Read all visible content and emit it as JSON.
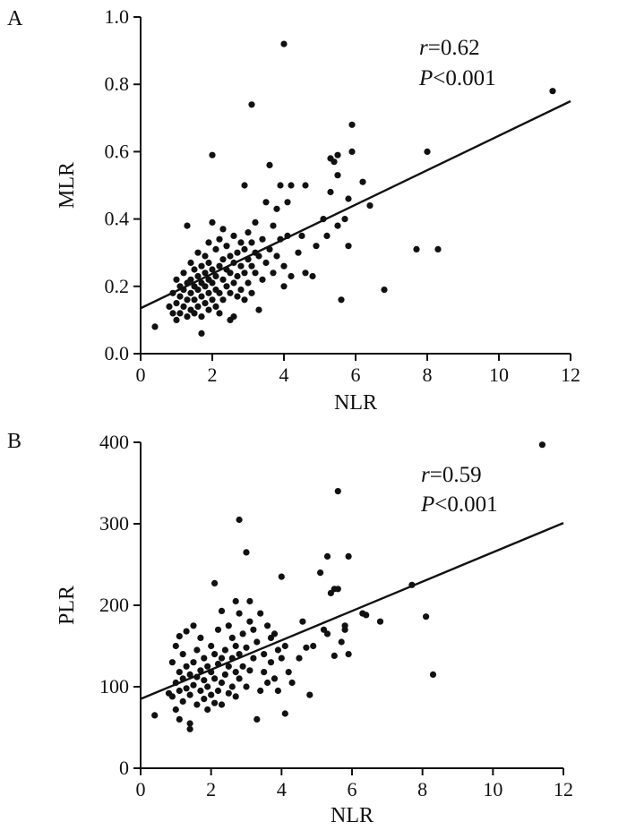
{
  "chart_data": [
    {
      "type": "scatter",
      "panel_label": "A",
      "xlabel": "NLR",
      "ylabel": "MLR",
      "xlim": [
        0,
        12
      ],
      "ylim": [
        0,
        1.0
      ],
      "x_ticks": [
        "0",
        "2",
        "4",
        "6",
        "8",
        "10",
        "12"
      ],
      "y_ticks": [
        "0.0",
        "0.2",
        "0.4",
        "0.6",
        "0.8",
        "1.0"
      ],
      "annotation": {
        "r_symbol": "r",
        "r_value": "=0.62",
        "p_symbol": "P",
        "p_value": "<0.001"
      },
      "regression": {
        "x": [
          0,
          12
        ],
        "y": [
          0.135,
          0.75
        ]
      },
      "points": [
        [
          0.4,
          0.08
        ],
        [
          0.8,
          0.14
        ],
        [
          0.9,
          0.12
        ],
        [
          0.9,
          0.18
        ],
        [
          1.0,
          0.1
        ],
        [
          1.0,
          0.15
        ],
        [
          1.0,
          0.22
        ],
        [
          1.1,
          0.12
        ],
        [
          1.1,
          0.17
        ],
        [
          1.1,
          0.2
        ],
        [
          1.2,
          0.14
        ],
        [
          1.2,
          0.19
        ],
        [
          1.2,
          0.24
        ],
        [
          1.3,
          0.11
        ],
        [
          1.3,
          0.16
        ],
        [
          1.3,
          0.21
        ],
        [
          1.3,
          0.38
        ],
        [
          1.4,
          0.13
        ],
        [
          1.4,
          0.18
        ],
        [
          1.4,
          0.22
        ],
        [
          1.4,
          0.27
        ],
        [
          1.5,
          0.12
        ],
        [
          1.5,
          0.16
        ],
        [
          1.5,
          0.2
        ],
        [
          1.5,
          0.25
        ],
        [
          1.6,
          0.14
        ],
        [
          1.6,
          0.19
        ],
        [
          1.6,
          0.23
        ],
        [
          1.6,
          0.3
        ],
        [
          1.7,
          0.11
        ],
        [
          1.7,
          0.17
        ],
        [
          1.7,
          0.21
        ],
        [
          1.7,
          0.26
        ],
        [
          1.7,
          0.06
        ],
        [
          1.8,
          0.15
        ],
        [
          1.8,
          0.2
        ],
        [
          1.8,
          0.24
        ],
        [
          1.8,
          0.29
        ],
        [
          1.9,
          0.13
        ],
        [
          1.9,
          0.18
        ],
        [
          1.9,
          0.22
        ],
        [
          1.9,
          0.27
        ],
        [
          1.9,
          0.33
        ],
        [
          2.0,
          0.16
        ],
        [
          2.0,
          0.21
        ],
        [
          2.0,
          0.25
        ],
        [
          2.0,
          0.39
        ],
        [
          2.0,
          0.59
        ],
        [
          2.1,
          0.14
        ],
        [
          2.1,
          0.19
        ],
        [
          2.1,
          0.23
        ],
        [
          2.1,
          0.31
        ],
        [
          2.2,
          0.12
        ],
        [
          2.2,
          0.18
        ],
        [
          2.2,
          0.26
        ],
        [
          2.2,
          0.34
        ],
        [
          2.3,
          0.16
        ],
        [
          2.3,
          0.22
        ],
        [
          2.3,
          0.28
        ],
        [
          2.3,
          0.37
        ],
        [
          2.4,
          0.2
        ],
        [
          2.4,
          0.25
        ],
        [
          2.4,
          0.32
        ],
        [
          2.5,
          0.1
        ],
        [
          2.5,
          0.18
        ],
        [
          2.5,
          0.24
        ],
        [
          2.5,
          0.29
        ],
        [
          2.6,
          0.11
        ],
        [
          2.6,
          0.21
        ],
        [
          2.6,
          0.27
        ],
        [
          2.6,
          0.35
        ],
        [
          2.7,
          0.17
        ],
        [
          2.7,
          0.23
        ],
        [
          2.7,
          0.3
        ],
        [
          2.8,
          0.19
        ],
        [
          2.8,
          0.26
        ],
        [
          2.8,
          0.33
        ],
        [
          2.9,
          0.16
        ],
        [
          2.9,
          0.24
        ],
        [
          2.9,
          0.31
        ],
        [
          2.9,
          0.5
        ],
        [
          3.0,
          0.21
        ],
        [
          3.0,
          0.28
        ],
        [
          3.0,
          0.36
        ],
        [
          3.1,
          0.18
        ],
        [
          3.1,
          0.26
        ],
        [
          3.1,
          0.33
        ],
        [
          3.1,
          0.74
        ],
        [
          3.2,
          0.24
        ],
        [
          3.2,
          0.3
        ],
        [
          3.2,
          0.39
        ],
        [
          3.3,
          0.13
        ],
        [
          3.3,
          0.29
        ],
        [
          3.4,
          0.22
        ],
        [
          3.4,
          0.34
        ],
        [
          3.5,
          0.27
        ],
        [
          3.5,
          0.45
        ],
        [
          3.6,
          0.31
        ],
        [
          3.6,
          0.56
        ],
        [
          3.7,
          0.24
        ],
        [
          3.7,
          0.38
        ],
        [
          3.8,
          0.29
        ],
        [
          3.8,
          0.43
        ],
        [
          3.9,
          0.34
        ],
        [
          3.9,
          0.5
        ],
        [
          4.0,
          0.26
        ],
        [
          4.0,
          0.2
        ],
        [
          4.0,
          0.92
        ],
        [
          4.1,
          0.35
        ],
        [
          4.1,
          0.45
        ],
        [
          4.2,
          0.23
        ],
        [
          4.2,
          0.5
        ],
        [
          4.4,
          0.3
        ],
        [
          4.5,
          0.35
        ],
        [
          4.6,
          0.24
        ],
        [
          4.6,
          0.5
        ],
        [
          4.8,
          0.23
        ],
        [
          4.9,
          0.32
        ],
        [
          5.1,
          0.4
        ],
        [
          5.2,
          0.35
        ],
        [
          5.3,
          0.58
        ],
        [
          5.3,
          0.48
        ],
        [
          5.4,
          0.57
        ],
        [
          5.5,
          0.59
        ],
        [
          5.5,
          0.38
        ],
        [
          5.5,
          0.53
        ],
        [
          5.6,
          0.16
        ],
        [
          5.7,
          0.4
        ],
        [
          5.8,
          0.32
        ],
        [
          5.8,
          0.46
        ],
        [
          5.9,
          0.6
        ],
        [
          5.9,
          0.68
        ],
        [
          6.2,
          0.51
        ],
        [
          6.4,
          0.44
        ],
        [
          6.8,
          0.19
        ],
        [
          7.7,
          0.31
        ],
        [
          8.0,
          0.6
        ],
        [
          8.3,
          0.31
        ],
        [
          11.5,
          0.78
        ]
      ]
    },
    {
      "type": "scatter",
      "panel_label": "B",
      "xlabel": "NLR",
      "ylabel": "PLR",
      "xlim": [
        0,
        12
      ],
      "ylim": [
        0,
        400
      ],
      "x_ticks": [
        "0",
        "2",
        "4",
        "6",
        "8",
        "10",
        "12"
      ],
      "y_ticks": [
        "0",
        "100",
        "200",
        "300",
        "400"
      ],
      "annotation": {
        "r_symbol": "r",
        "r_value": "=0.59",
        "p_symbol": "P",
        "p_value": "<0.001"
      },
      "regression": {
        "x": [
          0,
          12
        ],
        "y": [
          85,
          301
        ]
      },
      "points": [
        [
          0.4,
          65
        ],
        [
          0.8,
          92
        ],
        [
          0.9,
          88
        ],
        [
          0.9,
          130
        ],
        [
          1.0,
          72
        ],
        [
          1.0,
          105
        ],
        [
          1.0,
          150
        ],
        [
          1.1,
          60
        ],
        [
          1.1,
          95
        ],
        [
          1.1,
          118
        ],
        [
          1.1,
          162
        ],
        [
          1.2,
          82
        ],
        [
          1.2,
          110
        ],
        [
          1.2,
          140
        ],
        [
          1.3,
          98
        ],
        [
          1.3,
          125
        ],
        [
          1.3,
          168
        ],
        [
          1.4,
          55
        ],
        [
          1.4,
          90
        ],
        [
          1.4,
          115
        ],
        [
          1.4,
          48
        ],
        [
          1.5,
          102
        ],
        [
          1.5,
          130
        ],
        [
          1.5,
          175
        ],
        [
          1.6,
          78
        ],
        [
          1.6,
          112
        ],
        [
          1.6,
          145
        ],
        [
          1.7,
          95
        ],
        [
          1.7,
          120
        ],
        [
          1.7,
          160
        ],
        [
          1.8,
          85
        ],
        [
          1.8,
          108
        ],
        [
          1.8,
          135
        ],
        [
          1.9,
          72
        ],
        [
          1.9,
          100
        ],
        [
          1.9,
          125
        ],
        [
          2.0,
          90
        ],
        [
          2.0,
          118
        ],
        [
          2.0,
          150
        ],
        [
          2.1,
          80
        ],
        [
          2.1,
          110
        ],
        [
          2.1,
          140
        ],
        [
          2.1,
          227
        ],
        [
          2.2,
          95
        ],
        [
          2.2,
          128
        ],
        [
          2.2,
          170
        ],
        [
          2.3,
          78
        ],
        [
          2.3,
          105
        ],
        [
          2.3,
          135
        ],
        [
          2.3,
          193
        ],
        [
          2.4,
          115
        ],
        [
          2.4,
          145
        ],
        [
          2.5,
          92
        ],
        [
          2.5,
          125
        ],
        [
          2.5,
          175
        ],
        [
          2.6,
          100
        ],
        [
          2.6,
          135
        ],
        [
          2.6,
          160
        ],
        [
          2.7,
          88
        ],
        [
          2.7,
          118
        ],
        [
          2.7,
          150
        ],
        [
          2.7,
          205
        ],
        [
          2.8,
          110
        ],
        [
          2.8,
          140
        ],
        [
          2.8,
          190
        ],
        [
          2.8,
          305
        ],
        [
          2.9,
          125
        ],
        [
          2.9,
          165
        ],
        [
          3.0,
          100
        ],
        [
          3.0,
          148
        ],
        [
          3.0,
          265
        ],
        [
          3.1,
          120
        ],
        [
          3.1,
          180
        ],
        [
          3.1,
          205
        ],
        [
          3.2,
          135
        ],
        [
          3.2,
          170
        ],
        [
          3.3,
          60
        ],
        [
          3.3,
          155
        ],
        [
          3.4,
          95
        ],
        [
          3.4,
          190
        ],
        [
          3.5,
          118
        ],
        [
          3.5,
          140
        ],
        [
          3.6,
          105
        ],
        [
          3.6,
          175
        ],
        [
          3.7,
          130
        ],
        [
          3.7,
          160
        ],
        [
          3.8,
          110
        ],
        [
          3.8,
          165
        ],
        [
          3.9,
          95
        ],
        [
          3.9,
          145
        ],
        [
          4.0,
          135
        ],
        [
          4.0,
          235
        ],
        [
          4.1,
          67
        ],
        [
          4.1,
          150
        ],
        [
          4.2,
          118
        ],
        [
          4.3,
          105
        ],
        [
          4.5,
          135
        ],
        [
          4.6,
          180
        ],
        [
          4.7,
          148
        ],
        [
          4.8,
          90
        ],
        [
          4.9,
          150
        ],
        [
          5.1,
          240
        ],
        [
          5.2,
          170
        ],
        [
          5.3,
          260
        ],
        [
          5.3,
          165
        ],
        [
          5.4,
          215
        ],
        [
          5.5,
          138
        ],
        [
          5.5,
          220
        ],
        [
          5.6,
          340
        ],
        [
          5.6,
          220
        ],
        [
          5.7,
          155
        ],
        [
          5.8,
          175
        ],
        [
          5.8,
          170
        ],
        [
          5.9,
          260
        ],
        [
          5.9,
          140
        ],
        [
          6.3,
          190
        ],
        [
          6.4,
          188
        ],
        [
          6.8,
          180
        ],
        [
          7.7,
          225
        ],
        [
          8.1,
          186
        ],
        [
          8.3,
          115
        ],
        [
          11.4,
          397
        ]
      ]
    }
  ]
}
